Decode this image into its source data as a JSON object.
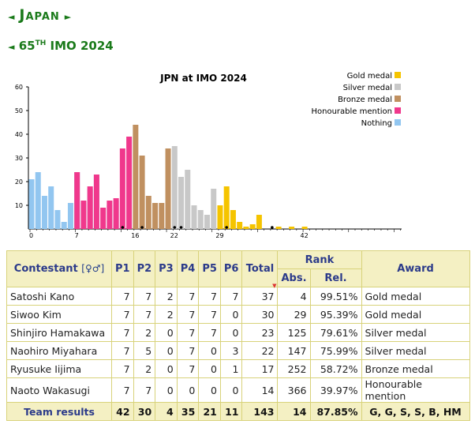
{
  "header": {
    "country": "Japan",
    "ordinal": "65",
    "ordinal_suffix": "TH",
    "event": "IMO 2024",
    "left_arrow": "◄",
    "right_arrow": "►"
  },
  "chart_data": {
    "type": "bar",
    "title": "JPN at IMO 2024",
    "xlabel": "",
    "ylabel": "",
    "xlim": [
      0,
      42
    ],
    "ylim": [
      0,
      60
    ],
    "x_ticks": [
      0,
      7,
      16,
      22,
      29,
      42
    ],
    "y_ticks": [
      10,
      20,
      30,
      40,
      50,
      60
    ],
    "legend_position": "top-right",
    "legend": [
      {
        "name": "Gold medal",
        "color": "#f5c400"
      },
      {
        "name": "Silver medal",
        "color": "#c8c8c8"
      },
      {
        "name": "Bronze medal",
        "color": "#c09060"
      },
      {
        "name": "Honourable mention",
        "color": "#f0388c"
      },
      {
        "name": "Nothing",
        "color": "#92c6f0"
      }
    ],
    "x": [
      0,
      1,
      2,
      3,
      4,
      5,
      6,
      7,
      8,
      9,
      10,
      11,
      12,
      13,
      14,
      15,
      16,
      17,
      18,
      19,
      20,
      21,
      22,
      23,
      24,
      25,
      26,
      27,
      28,
      29,
      30,
      31,
      32,
      33,
      34,
      35,
      36,
      37,
      38,
      39,
      40,
      41,
      42
    ],
    "counts": [
      21,
      24,
      14,
      18,
      8,
      3,
      11,
      24,
      12,
      18,
      23,
      9,
      12,
      13,
      34,
      39,
      44,
      31,
      14,
      11,
      11,
      34,
      35,
      22,
      25,
      10,
      8,
      6,
      17,
      10,
      18,
      8,
      3,
      1,
      2,
      6,
      0,
      0,
      1,
      0,
      1,
      0,
      1
    ],
    "category_by_score": [
      "Nothing",
      "Nothing",
      "Nothing",
      "Nothing",
      "Nothing",
      "Nothing",
      "Nothing",
      "Honourable mention",
      "Honourable mention",
      "Honourable mention",
      "Honourable mention",
      "Honourable mention",
      "Honourable mention",
      "Honourable mention",
      "Honourable mention",
      "Honourable mention",
      "Bronze medal",
      "Bronze medal",
      "Bronze medal",
      "Bronze medal",
      "Bronze medal",
      "Bronze medal",
      "Silver medal",
      "Silver medal",
      "Silver medal",
      "Silver medal",
      "Silver medal",
      "Silver medal",
      "Silver medal",
      "Gold medal",
      "Gold medal",
      "Gold medal",
      "Gold medal",
      "Gold medal",
      "Gold medal",
      "Gold medal",
      "Gold medal",
      "Gold medal",
      "Gold medal",
      "Gold medal",
      "Gold medal",
      "Gold medal",
      "Gold medal"
    ],
    "nothing_part_counts": {
      "7": 24,
      "8": 11,
      "9": 17,
      "10": 23,
      "12": 10,
      "13": 12
    },
    "team_member_scores": [
      37,
      30,
      23,
      22,
      17,
      14
    ]
  },
  "table": {
    "headers": {
      "contestant": "Contestant",
      "gender_symbols": "[♀♂]",
      "problems": [
        "P1",
        "P2",
        "P3",
        "P4",
        "P5",
        "P6"
      ],
      "total": "Total",
      "sort_marker": "▼",
      "rank": "Rank",
      "abs": "Abs.",
      "rel": "Rel.",
      "award": "Award"
    },
    "rows": [
      {
        "name": "Satoshi Kano",
        "p": [
          "7",
          "7",
          "2",
          "7",
          "7",
          "7"
        ],
        "total": "37",
        "abs": "4",
        "rel": "99.51%",
        "award": "Gold medal"
      },
      {
        "name": "Siwoo Kim",
        "p": [
          "7",
          "7",
          "2",
          "7",
          "7",
          "0"
        ],
        "total": "30",
        "abs": "29",
        "rel": "95.39%",
        "award": "Gold medal"
      },
      {
        "name": "Shinjiro Hamakawa",
        "p": [
          "7",
          "2",
          "0",
          "7",
          "7",
          "0"
        ],
        "total": "23",
        "abs": "125",
        "rel": "79.61%",
        "award": "Silver medal"
      },
      {
        "name": "Naohiro Miyahara",
        "p": [
          "7",
          "5",
          "0",
          "7",
          "0",
          "3"
        ],
        "total": "22",
        "abs": "147",
        "rel": "75.99%",
        "award": "Silver medal"
      },
      {
        "name": "Ryusuke Iijima",
        "p": [
          "7",
          "2",
          "0",
          "7",
          "0",
          "1"
        ],
        "total": "17",
        "abs": "252",
        "rel": "58.72%",
        "award": "Bronze medal"
      },
      {
        "name": "Naoto Wakasugi",
        "p": [
          "7",
          "7",
          "0",
          "0",
          "0",
          "0"
        ],
        "total": "14",
        "abs": "366",
        "rel": "39.97%",
        "award": "Honourable mention"
      }
    ],
    "team": {
      "label": "Team results",
      "p": [
        "42",
        "30",
        "4",
        "35",
        "21",
        "11"
      ],
      "total": "143",
      "abs": "14",
      "rel": "87.85%",
      "award": "G, G, S, S, B, HM"
    }
  }
}
